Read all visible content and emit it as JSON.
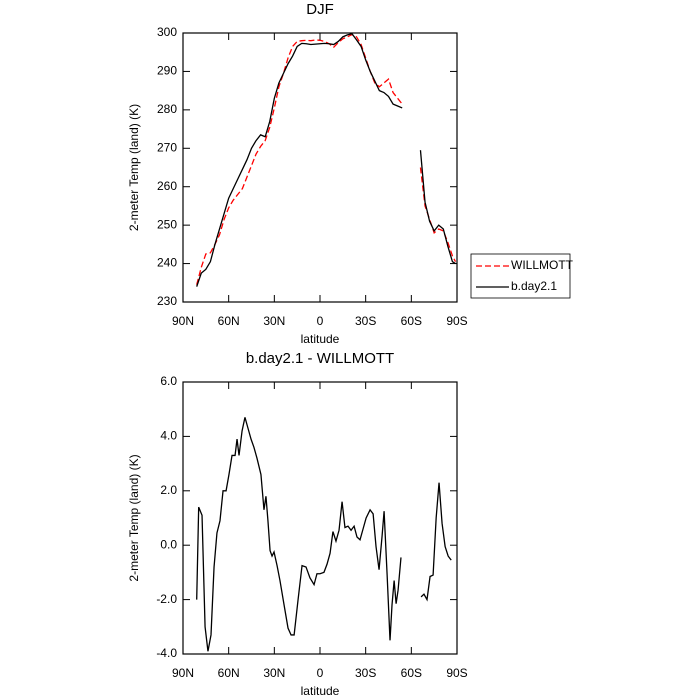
{
  "chart_data": [
    {
      "type": "line",
      "title": "DJF",
      "x_label": "latitude",
      "y_label": "2-meter Temp (land) (K)",
      "x": [
        81,
        78,
        75,
        72,
        69,
        66,
        63,
        60,
        57,
        54,
        51,
        48,
        45,
        42,
        39,
        36,
        33,
        30,
        27,
        24,
        21,
        18,
        15,
        12,
        9,
        6,
        3,
        0,
        -3,
        -6,
        -9,
        -12,
        -15,
        -18,
        -21,
        -24,
        -27,
        -30,
        -33,
        -36,
        -39,
        -42,
        -45,
        -48,
        -51,
        -54,
        -57,
        -60,
        -63,
        -66,
        -69,
        -72,
        -75,
        -78,
        -81,
        -84,
        -87,
        -89
      ],
      "series": [
        {
          "name": "WILLMOTT",
          "color": "#ff0000",
          "dash": "dashed",
          "values": [
            234.5,
            239,
            242.5,
            242.8,
            245,
            247.5,
            251.5,
            254.5,
            256.5,
            258,
            259.5,
            262.5,
            265.5,
            268.5,
            270.5,
            272,
            275.5,
            280.5,
            286,
            289.5,
            293.5,
            296.5,
            297.8,
            298,
            298.1,
            298,
            298.2,
            298.1,
            297.8,
            297.2,
            296.3,
            297.5,
            298.5,
            299,
            299.6,
            299,
            297,
            293.5,
            290,
            287,
            286,
            287,
            288,
            284.5,
            283,
            281.5,
            null,
            null,
            null,
            265,
            255,
            251.5,
            248,
            249,
            248.5,
            245.5,
            242,
            240.5
          ]
        },
        {
          "name": "b.day2.1",
          "color": "#000000",
          "dash": "solid",
          "values": [
            234,
            237.5,
            238.5,
            240.5,
            245,
            249,
            253,
            257,
            259.5,
            262,
            264.5,
            267,
            270,
            272,
            273.5,
            273,
            277,
            283,
            287,
            289.5,
            292,
            294,
            296.5,
            297.3,
            297.2,
            297,
            297.1,
            297.2,
            297.3,
            297.2,
            297,
            297.8,
            299,
            299.5,
            299.8,
            298.2,
            296.5,
            293,
            290,
            287.5,
            285,
            284.5,
            283.5,
            281.5,
            281,
            280.5,
            null,
            null,
            null,
            269.5,
            256,
            251,
            248.5,
            250,
            249,
            244.5,
            240.5,
            240
          ]
        }
      ],
      "xlim": [
        90,
        -90
      ],
      "xticks": [
        {
          "value": 90,
          "label": "90N"
        },
        {
          "value": 60,
          "label": "60N"
        },
        {
          "value": 30,
          "label": "30N"
        },
        0,
        {
          "value": -30,
          "label": "30S"
        },
        {
          "value": -60,
          "label": "60S"
        },
        {
          "value": -90,
          "label": "90S"
        }
      ],
      "ylim": [
        230,
        300
      ],
      "yticks": [
        230,
        240,
        250,
        260,
        270,
        280,
        290,
        300
      ],
      "legend": "outside-right"
    },
    {
      "type": "line",
      "title": "b.day2.1 - WILLMOTT",
      "x_label": "latitude",
      "y_label": "2-meter Temp (land) (K)",
      "x": [
        81,
        79.7,
        77.5,
        75.5,
        73.6,
        71.6,
        69.6,
        67.7,
        65.7,
        63.7,
        61.7,
        59.8,
        57.8,
        55.8,
        54.5,
        53.2,
        51.2,
        49.3,
        47.3,
        45.3,
        43.4,
        41.4,
        38.8,
        36.8,
        35.5,
        34.2,
        32.8,
        31.5,
        30.2,
        28.2,
        26.3,
        23.6,
        21,
        19,
        17,
        14.4,
        11.8,
        9.2,
        6.6,
        3.9,
        2,
        0,
        -2.6,
        -4.6,
        -6.6,
        -8.5,
        -10.5,
        -12.5,
        -14.5,
        -16.4,
        -18.4,
        -20.4,
        -22.4,
        -24.3,
        -26.3,
        -28.3,
        -30.3,
        -32.9,
        -34.9,
        -36.8,
        -38.8,
        -40.8,
        -42.1,
        -44.1,
        -46,
        -47.3,
        -48.7,
        -50,
        -51.3,
        -53.2,
        -60,
        -66.4,
        -68.3,
        -70.3,
        -72.3,
        -74.3,
        -76.3,
        -78.2,
        -80.2,
        -82.2,
        -84.2,
        -86.2
      ],
      "series": [
        {
          "color": "#000000",
          "dash": "solid",
          "values": [
            -2.0,
            1.4,
            1.1,
            -3.0,
            -3.9,
            -3.3,
            -0.8,
            0.45,
            0.9,
            2.0,
            2.0,
            2.6,
            3.3,
            3.3,
            3.9,
            3.3,
            4.2,
            4.7,
            4.3,
            3.9,
            3.6,
            3.2,
            2.6,
            1.3,
            1.8,
            0.9,
            -0.2,
            -0.4,
            -0.25,
            -0.75,
            -1.3,
            -2.2,
            -3.05,
            -3.3,
            -3.3,
            -2.0,
            -0.75,
            -0.8,
            -1.2,
            -1.45,
            -1.05,
            -1.05,
            -1.0,
            -0.7,
            -0.3,
            0.5,
            0.15,
            0.55,
            1.6,
            0.65,
            0.7,
            0.55,
            0.7,
            0.3,
            0.2,
            0.6,
            1.0,
            1.3,
            1.15,
            -0.05,
            -0.9,
            0.35,
            1.25,
            -1.1,
            -3.5,
            -2.2,
            -1.3,
            -2.15,
            -1.65,
            -0.45,
            null,
            -1.9,
            -1.8,
            -2.0,
            -1.15,
            -1.1,
            1.0,
            2.3,
            0.8,
            -0.05,
            -0.4,
            -0.55
          ]
        }
      ],
      "xlim": [
        90,
        -90
      ],
      "xticks": [
        {
          "value": 90,
          "label": "90N"
        },
        {
          "value": 60,
          "label": "60N"
        },
        {
          "value": 30,
          "label": "30N"
        },
        0,
        {
          "value": -30,
          "label": "30S"
        },
        {
          "value": -60,
          "label": "60S"
        },
        {
          "value": -90,
          "label": "90S"
        }
      ],
      "ylim": [
        -4,
        6
      ],
      "yticks": [
        {
          "value": -4,
          "label": "-4.0"
        },
        {
          "value": -2,
          "label": "-2.0"
        },
        {
          "value": 0,
          "label": "0.0"
        },
        {
          "value": 2,
          "label": "2.0"
        },
        {
          "value": 4,
          "label": "4.0"
        },
        {
          "value": 6,
          "label": "6.0"
        }
      ]
    }
  ]
}
